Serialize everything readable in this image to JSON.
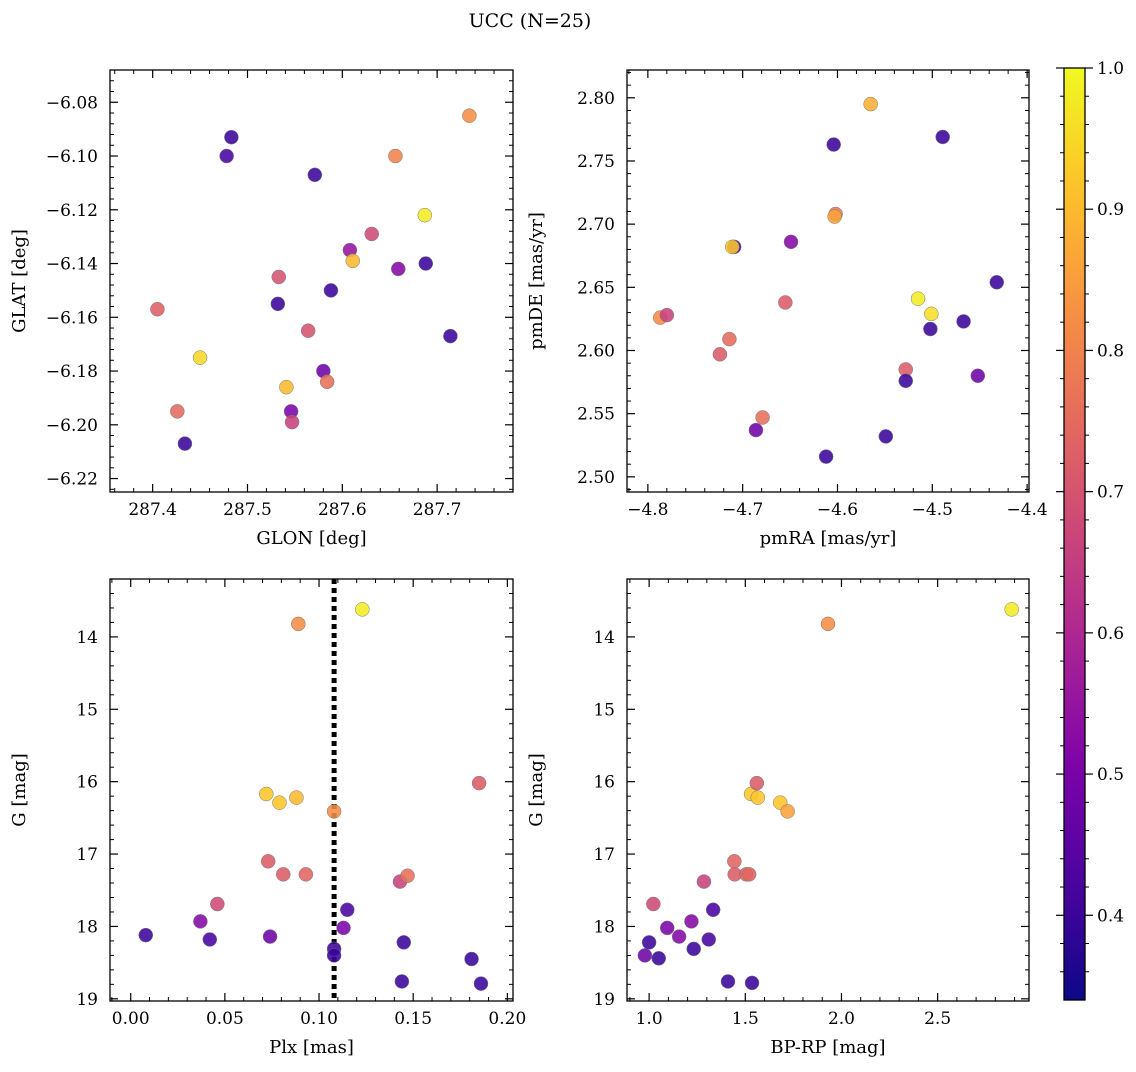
{
  "figure": {
    "suptitle": "UCC (N=25)"
  },
  "colorbar": {
    "vmin": 0.34,
    "vmax": 1.0,
    "ticks": [
      0.4,
      0.5,
      0.6,
      0.7,
      0.8,
      0.9,
      1.0
    ],
    "tick_labels": [
      "0.4",
      "0.5",
      "0.6",
      "0.7",
      "0.8",
      "0.9",
      "1.0"
    ],
    "colormap": "plasma"
  },
  "chart_data": [
    {
      "id": "sky",
      "type": "scatter",
      "xlabel": "GLON [deg]",
      "ylabel": "GLAT [deg]",
      "xlim": [
        287.355,
        287.78
      ],
      "ylim": [
        -6.225,
        -6.068
      ],
      "xticks": [
        287.4,
        287.5,
        287.6,
        287.7
      ],
      "xtick_labels": [
        "287.4",
        "287.5",
        "287.6",
        "287.7"
      ],
      "yticks": [
        -6.22,
        -6.2,
        -6.18,
        -6.16,
        -6.14,
        -6.12,
        -6.1,
        -6.08
      ],
      "ytick_labels": [
        "−6.22",
        "−6.20",
        "−6.18",
        "−6.16",
        "−6.14",
        "−6.12",
        "−6.10",
        "−6.08"
      ],
      "x": [
        287.405,
        287.426,
        287.434,
        287.45,
        287.478,
        287.483,
        287.532,
        287.533,
        287.541,
        287.546,
        287.547,
        287.564,
        287.571,
        287.58,
        287.584,
        287.588,
        287.608,
        287.611,
        287.631,
        287.656,
        287.659,
        287.687,
        287.688,
        287.714,
        287.734
      ],
      "y": [
        -6.157,
        -6.195,
        -6.207,
        -6.175,
        -6.1,
        -6.093,
        -6.155,
        -6.145,
        -6.186,
        -6.195,
        -6.199,
        -6.165,
        -6.107,
        -6.18,
        -6.184,
        -6.15,
        -6.135,
        -6.139,
        -6.129,
        -6.1,
        -6.142,
        -6.122,
        -6.14,
        -6.167,
        -6.085
      ],
      "c": [
        0.73,
        0.75,
        0.4,
        0.95,
        0.42,
        0.4,
        0.4,
        0.7,
        0.9,
        0.5,
        0.66,
        0.7,
        0.4,
        0.48,
        0.76,
        0.4,
        0.55,
        0.9,
        0.68,
        0.8,
        0.52,
        0.98,
        0.4,
        0.4,
        0.82
      ]
    },
    {
      "id": "pm",
      "type": "scatter",
      "xlabel": "pmRA [mas/yr]",
      "ylabel": "pmDE [mas/yr]",
      "xlim": [
        -4.822,
        -4.398
      ],
      "ylim": [
        2.488,
        2.822
      ],
      "xticks": [
        -4.8,
        -4.7,
        -4.6,
        -4.5,
        -4.4
      ],
      "xtick_labels": [
        "−4.8",
        "−4.7",
        "−4.6",
        "−4.5",
        "−4.4"
      ],
      "yticks": [
        2.5,
        2.55,
        2.6,
        2.65,
        2.7,
        2.75,
        2.8
      ],
      "ytick_labels": [
        "2.50",
        "2.55",
        "2.60",
        "2.65",
        "2.70",
        "2.75",
        "2.80"
      ],
      "x": [
        -4.787,
        -4.78,
        -4.724,
        -4.714,
        -4.709,
        -4.711,
        -4.686,
        -4.679,
        -4.655,
        -4.649,
        -4.612,
        -4.604,
        -4.602,
        -4.603,
        -4.565,
        -4.549,
        -4.528,
        -4.528,
        -4.515,
        -4.501,
        -4.502,
        -4.489,
        -4.467,
        -4.452,
        -4.432
      ],
      "y": [
        2.626,
        2.628,
        2.597,
        2.609,
        2.682,
        2.682,
        2.537,
        2.547,
        2.638,
        2.686,
        2.516,
        2.763,
        2.708,
        2.706,
        2.795,
        2.532,
        2.585,
        2.576,
        2.641,
        2.629,
        2.617,
        2.769,
        2.623,
        2.58,
        2.654
      ],
      "c": [
        0.82,
        0.66,
        0.72,
        0.75,
        0.4,
        0.92,
        0.48,
        0.76,
        0.72,
        0.52,
        0.4,
        0.4,
        0.78,
        0.86,
        0.88,
        0.4,
        0.72,
        0.4,
        0.98,
        0.96,
        0.4,
        0.4,
        0.4,
        0.48,
        0.4
      ]
    },
    {
      "id": "plx",
      "type": "scatter",
      "xlabel": "Plx [mas]",
      "ylabel": "G [mag]",
      "xlim": [
        -0.011,
        0.203
      ],
      "ylim": [
        19.03,
        13.2
      ],
      "y_inverted": true,
      "xticks": [
        0.0,
        0.05,
        0.1,
        0.15,
        0.2
      ],
      "xtick_labels": [
        "0.00",
        "0.05",
        "0.10",
        "0.15",
        "0.20"
      ],
      "yticks": [
        14,
        15,
        16,
        17,
        18,
        19
      ],
      "ytick_labels": [
        "14",
        "15",
        "16",
        "17",
        "18",
        "19"
      ],
      "vline": 0.108,
      "x": [
        0.008,
        0.037,
        0.042,
        0.046,
        0.072,
        0.073,
        0.074,
        0.079,
        0.081,
        0.088,
        0.089,
        0.093,
        0.108,
        0.108,
        0.108,
        0.113,
        0.115,
        0.123,
        0.143,
        0.144,
        0.145,
        0.147,
        0.181,
        0.185,
        0.186
      ],
      "y": [
        18.12,
        17.93,
        18.18,
        17.69,
        16.17,
        17.1,
        18.14,
        16.29,
        17.28,
        16.22,
        13.82,
        17.28,
        16.41,
        18.31,
        18.4,
        18.02,
        17.77,
        13.62,
        17.38,
        18.76,
        18.22,
        17.3,
        18.45,
        16.02,
        18.79
      ],
      "c": [
        0.4,
        0.52,
        0.42,
        0.68,
        0.92,
        0.72,
        0.48,
        0.92,
        0.72,
        0.9,
        0.82,
        0.74,
        0.82,
        0.4,
        0.4,
        0.5,
        0.42,
        0.98,
        0.66,
        0.4,
        0.4,
        0.76,
        0.4,
        0.72,
        0.4
      ]
    },
    {
      "id": "cmd",
      "type": "scatter",
      "xlabel": "BP-RP [mag]",
      "ylabel": "G [mag]",
      "xlim": [
        0.885,
        2.975
      ],
      "ylim": [
        19.03,
        13.2
      ],
      "y_inverted": true,
      "xticks": [
        1.0,
        1.5,
        2.0,
        2.5
      ],
      "xtick_labels": [
        "1.0",
        "1.5",
        "2.0",
        "2.5"
      ],
      "yticks": [
        14,
        15,
        16,
        17,
        18,
        19
      ],
      "ytick_labels": [
        "14",
        "15",
        "16",
        "17",
        "18",
        "19"
      ],
      "x": [
        0.978,
        1.0,
        1.022,
        1.05,
        1.094,
        1.156,
        1.22,
        1.232,
        1.285,
        1.31,
        1.333,
        1.41,
        1.443,
        1.445,
        1.505,
        1.52,
        1.53,
        1.535,
        1.56,
        1.565,
        1.682,
        1.72,
        1.93,
        2.885
      ],
      "y": [
        18.4,
        18.22,
        17.69,
        18.44,
        18.02,
        18.14,
        17.93,
        18.31,
        17.38,
        18.18,
        17.77,
        18.76,
        17.1,
        17.28,
        17.28,
        17.28,
        16.17,
        18.78,
        16.02,
        16.22,
        16.29,
        16.41,
        13.82,
        13.62
      ],
      "c": [
        0.48,
        0.4,
        0.68,
        0.4,
        0.5,
        0.52,
        0.52,
        0.4,
        0.66,
        0.42,
        0.42,
        0.4,
        0.74,
        0.72,
        0.74,
        0.74,
        0.92,
        0.4,
        0.72,
        0.92,
        0.92,
        0.86,
        0.82,
        0.98
      ]
    }
  ]
}
